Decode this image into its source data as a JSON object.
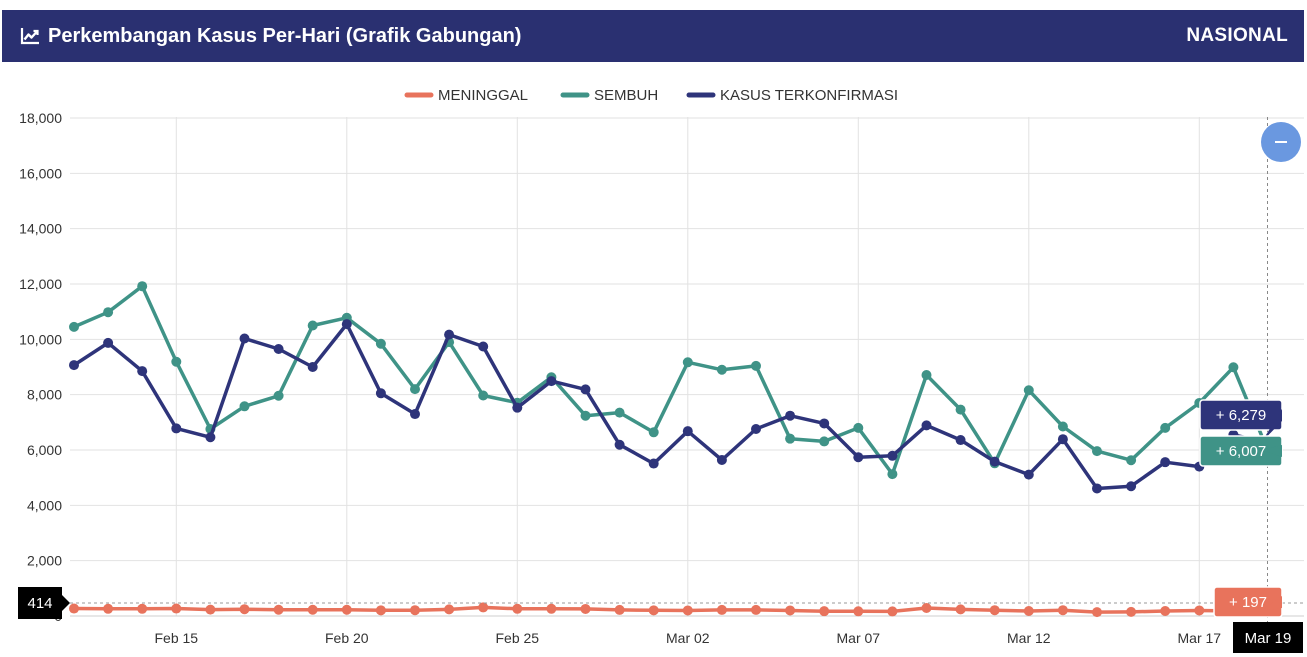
{
  "header": {
    "title": "Perkembangan Kasus Per-Hari (Grafik Gabungan)",
    "scope": "NASIONAL",
    "title_icon": "line-chart-icon"
  },
  "zoom_out_icon": "minus-icon",
  "colors": {
    "header_bg": "#2a3071",
    "meninggal": "#e8735c",
    "sembuh": "#3f9387",
    "kasus": "#2e347a",
    "zoom_button": "#6a98e0"
  },
  "chart_data": {
    "type": "line",
    "legend_position": "top-center",
    "grid": true,
    "x_start_date": "Feb 12",
    "x_end_date": "Mar 19",
    "x_tick_labels": [
      "Feb 15",
      "Feb 20",
      "Feb 25",
      "Mar 02",
      "Mar 07",
      "Mar 12",
      "Mar 17"
    ],
    "y_tick_labels": [
      "0",
      "2,000",
      "4,000",
      "6,000",
      "8,000",
      "10,000",
      "12,000",
      "14,000",
      "16,000",
      "18,000"
    ],
    "ylim": [
      0,
      18000
    ],
    "series": [
      {
        "name": "MENINGGAL",
        "key": "meninggal",
        "values": [
          270,
          260,
          260,
          270,
          230,
          245,
          225,
          225,
          225,
          205,
          210,
          240,
          310,
          260,
          260,
          255,
          220,
          205,
          200,
          220,
          220,
          200,
          175,
          170,
          165,
          290,
          240,
          210,
          180,
          210,
          140,
          150,
          180,
          200,
          180,
          197
        ]
      },
      {
        "name": "SEMBUH",
        "key": "sembuh",
        "values": [
          10450,
          10980,
          11920,
          9190,
          6760,
          7580,
          7960,
          10500,
          10780,
          9840,
          8200,
          9900,
          7970,
          7710,
          8630,
          7240,
          7350,
          6640,
          9170,
          8900,
          9040,
          6410,
          6310,
          6800,
          5130,
          8710,
          7460,
          5520,
          8160,
          6850,
          5960,
          5630,
          6800,
          7700,
          8990,
          6007
        ]
      },
      {
        "name": "KASUS TERKONFIRMASI",
        "key": "kasus",
        "values": [
          9070,
          9870,
          8850,
          6780,
          6460,
          10030,
          9650,
          9000,
          10550,
          8050,
          7300,
          10170,
          9740,
          7530,
          8490,
          8190,
          6190,
          5510,
          6680,
          5640,
          6760,
          7240,
          6960,
          5740,
          5790,
          6890,
          6360,
          5580,
          5110,
          6390,
          4610,
          4690,
          5560,
          5400,
          6550,
          6279
        ]
      }
    ],
    "tooltips": [
      {
        "series": "kasus",
        "label": "+ 6,279"
      },
      {
        "series": "sembuh",
        "label": "+ 6,007"
      },
      {
        "series": "meninggal",
        "label": "+ 197"
      }
    ],
    "crosshair_y_label": "414",
    "crosshair_x_label": "Mar 19"
  }
}
